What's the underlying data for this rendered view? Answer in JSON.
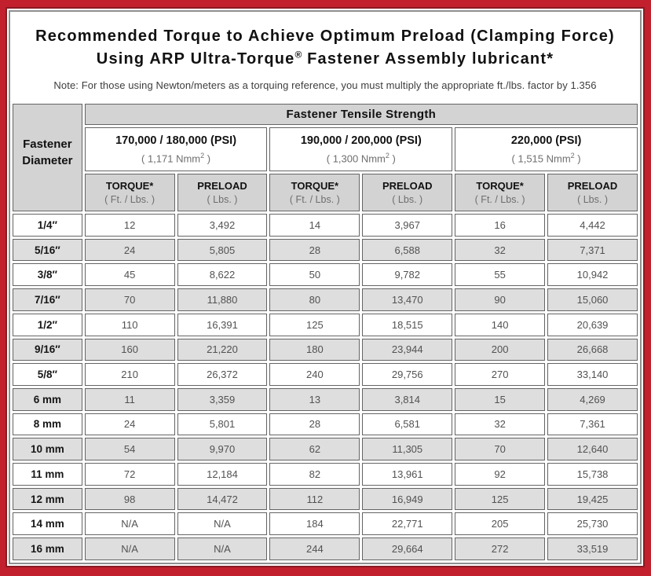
{
  "frame": {
    "border_color": "#c2202c",
    "inner_line_color": "#8a1a22"
  },
  "title": {
    "line1": "Recommended Torque to Achieve Optimum Preload (Clamping Force)",
    "line2_pre": "Using ARP Ultra-Torque",
    "line2_sup": "®",
    "line2_post": " Fastener Assembly lubricant*",
    "note": "Note: For those using Newton/meters as a torquing reference, you must multiply the appropriate ft./lbs. factor by 1.356"
  },
  "table": {
    "tensile_strength_header": "Fastener Tensile Strength",
    "diameter_header": "Fastener Diameter",
    "groups": [
      {
        "psi": "170,000 / 180,000 (PSI)",
        "nmm_pre": "( 1,171 Nmm",
        "nmm_sup": "2",
        "nmm_post": " )"
      },
      {
        "psi": "190,000 / 200,000 (PSI)",
        "nmm_pre": "( 1,300 Nmm",
        "nmm_sup": "2",
        "nmm_post": " )"
      },
      {
        "psi": "220,000 (PSI)",
        "nmm_pre": "( 1,515 Nmm",
        "nmm_sup": "2",
        "nmm_post": " )"
      }
    ],
    "subheaders": {
      "torque_label": "TORQUE*",
      "torque_unit": "( Ft. / Lbs. )",
      "preload_label": "PRELOAD",
      "preload_unit": "( Lbs. )"
    },
    "rows": [
      {
        "diameter": "1/4″",
        "values": [
          "12",
          "3,492",
          "14",
          "3,967",
          "16",
          "4,442"
        ]
      },
      {
        "diameter": "5/16″",
        "values": [
          "24",
          "5,805",
          "28",
          "6,588",
          "32",
          "7,371"
        ]
      },
      {
        "diameter": "3/8″",
        "values": [
          "45",
          "8,622",
          "50",
          "9,782",
          "55",
          "10,942"
        ]
      },
      {
        "diameter": "7/16″",
        "values": [
          "70",
          "11,880",
          "80",
          "13,470",
          "90",
          "15,060"
        ]
      },
      {
        "diameter": "1/2″",
        "values": [
          "110",
          "16,391",
          "125",
          "18,515",
          "140",
          "20,639"
        ]
      },
      {
        "diameter": "9/16″",
        "values": [
          "160",
          "21,220",
          "180",
          "23,944",
          "200",
          "26,668"
        ]
      },
      {
        "diameter": "5/8″",
        "values": [
          "210",
          "26,372",
          "240",
          "29,756",
          "270",
          "33,140"
        ]
      },
      {
        "diameter": "6 mm",
        "values": [
          "11",
          "3,359",
          "13",
          "3,814",
          "15",
          "4,269"
        ]
      },
      {
        "diameter": "8 mm",
        "values": [
          "24",
          "5,801",
          "28",
          "6,581",
          "32",
          "7,361"
        ]
      },
      {
        "diameter": "10 mm",
        "values": [
          "54",
          "9,970",
          "62",
          "11,305",
          "70",
          "12,640"
        ]
      },
      {
        "diameter": "11 mm",
        "values": [
          "72",
          "12,184",
          "82",
          "13,961",
          "92",
          "15,738"
        ]
      },
      {
        "diameter": "12 mm",
        "values": [
          "98",
          "14,472",
          "112",
          "16,949",
          "125",
          "19,425"
        ]
      },
      {
        "diameter": "14 mm",
        "values": [
          "N/A",
          "N/A",
          "184",
          "22,771",
          "205",
          "25,730"
        ]
      },
      {
        "diameter": "16 mm",
        "values": [
          "N/A",
          "N/A",
          "244",
          "29,664",
          "272",
          "33,519"
        ]
      }
    ]
  }
}
